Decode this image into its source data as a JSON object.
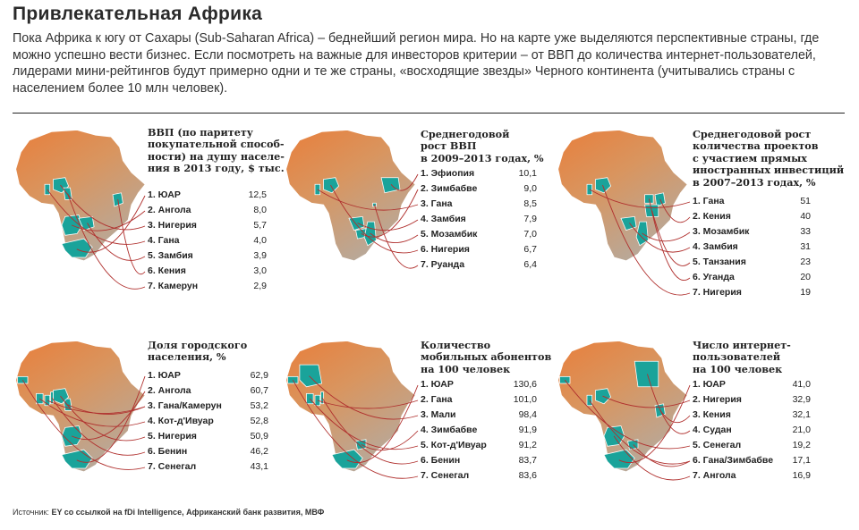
{
  "title": "Привлекательная Африка",
  "intro": "Пока Африка к югу от Сахары (Sub-Saharan Africa) – беднейший регион мира. Но на карте уже выделяются перспективные страны, где можно успешно вести бизнес. Если посмотреть на важные для инвесторов критерии – от ВВП до количества интернет-пользователей, лидерами мини-рейтингов будут примерно одни и те же страны, «восходящие звезды» Черного континента (учитывались страны с населением более 10 млн человек).",
  "source": {
    "label": "Источник:",
    "text": "EY со ссылкой на fDi Intelligence, Африканский банк развития, МВФ"
  },
  "colors": {
    "map_north": "#e87f3c",
    "map_south": "#b7a99b",
    "highlight": "#1aa39a",
    "connector": "#b0302e"
  },
  "chart_data": [
    {
      "type": "table",
      "title_lines": [
        "ВВП (по паритету",
        "покупательной способ-",
        "ности) на душу населе-",
        "ния в 2013 году, $ тыс."
      ],
      "ranks": [
        "1. ЮАР",
        "2. Ангола",
        "3. Нигерия",
        "4. Гана",
        "5. Замбия",
        "6. Кения",
        "7. Камерун"
      ],
      "values": [
        "12,5",
        "8,0",
        "5,7",
        "4,0",
        "3,9",
        "3,0",
        "2,9"
      ]
    },
    {
      "type": "table",
      "title_lines": [
        "Среднегодовой",
        "рост ВВП",
        "в 2009–2013 годах, %"
      ],
      "ranks": [
        "1. Эфиопия",
        "2. Зимбабве",
        "3. Гана",
        "4. Замбия",
        "5. Мозамбик",
        "6. Нигерия",
        "7. Руанда"
      ],
      "values": [
        "10,1",
        "9,0",
        "8,5",
        "7,9",
        "7,0",
        "6,7",
        "6,4"
      ]
    },
    {
      "type": "table",
      "title_lines": [
        "Среднегодовой рост",
        "количества проектов",
        "с участием прямых",
        "иностранных инвестиций",
        "в 2007–2013 годах, %"
      ],
      "ranks": [
        "1. Гана",
        "2. Кения",
        "3. Мозамбик",
        "4. Замбия",
        "5. Танзания",
        "6. Уганда",
        "7. Нигерия"
      ],
      "values": [
        "51",
        "40",
        "33",
        "31",
        "23",
        "20",
        "19"
      ]
    },
    {
      "type": "table",
      "title_lines": [
        "Доля городского",
        "населения, %"
      ],
      "ranks": [
        "1. ЮАР",
        "2. Ангола",
        "3. Гана/Камерун",
        "4. Кот-д'Ивуар",
        "5. Нигерия",
        "6. Бенин",
        "7. Сенегал"
      ],
      "values": [
        "62,9",
        "60,7",
        "53,2",
        "52,8",
        "50,9",
        "46,2",
        "43,1"
      ]
    },
    {
      "type": "table",
      "title_lines": [
        "Количество",
        "мобильных абонентов",
        "на 100 человек"
      ],
      "ranks": [
        "1. ЮАР",
        "2. Гана",
        "3. Мали",
        "4. Зимбабве",
        "5. Кот-д'Ивуар",
        "6. Бенин",
        "7. Сенегал"
      ],
      "values": [
        "130,6",
        "101,0",
        "98,4",
        "91,9",
        "91,2",
        "83,7",
        "83,6"
      ]
    },
    {
      "type": "table",
      "title_lines": [
        "Число интернет-",
        "пользователей",
        "на 100 человек"
      ],
      "ranks": [
        "1. ЮАР",
        "2. Нигерия",
        "3. Кения",
        "4. Судан",
        "5. Сенегал",
        "6. Гана/Зимбабве",
        "7. Ангола"
      ],
      "values": [
        "41,0",
        "32,9",
        "32,1",
        "21,0",
        "19,2",
        "17,1",
        "16,9"
      ]
    }
  ]
}
